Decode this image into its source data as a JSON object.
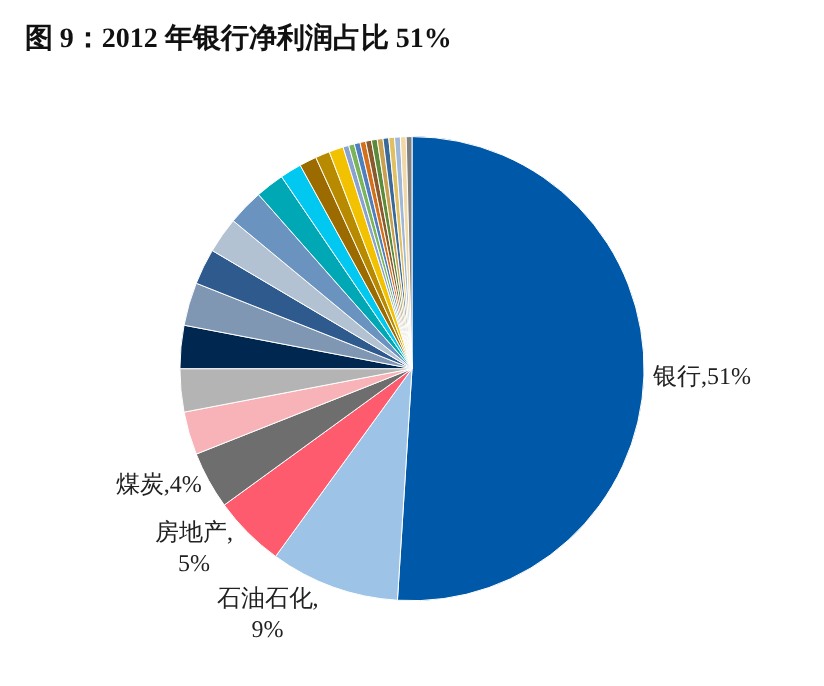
{
  "chart_data": {
    "type": "pie",
    "title": "图 9：2012 年银行净利润占比 51%",
    "categories": [
      "银行",
      "石油石化",
      "房地产",
      "煤炭",
      null,
      null,
      null,
      null,
      null,
      null,
      null,
      null,
      null,
      null,
      null,
      null,
      null,
      null,
      null,
      null,
      null,
      null,
      null,
      null,
      null,
      null,
      null,
      null
    ],
    "values": [
      51,
      9,
      5,
      4,
      3,
      3,
      3,
      3,
      2.5,
      2.5,
      2.5,
      2,
      1.5,
      1.2,
      1,
      1,
      0.4,
      0.4,
      0.4,
      0.4,
      0.4,
      0.4,
      0.4,
      0.4,
      0.4,
      0.4,
      0.4,
      0.4
    ],
    "colors": [
      "#0058a8",
      "#9dc3e6",
      "#ff5b6e",
      "#6e6e6e",
      "#f7b3b8",
      "#b4b4b4",
      "#00274f",
      "#7f97b3",
      "#2e5a8e",
      "#b3c2d3",
      "#6a93c0",
      "#00a8b5",
      "#00c8f0",
      "#9b6b00",
      "#b88a00",
      "#f2c200",
      "#8aa2d0",
      "#7ab55c",
      "#4f7fc0",
      "#d4701c",
      "#8a5a2c",
      "#5b8b3a",
      "#c8a050",
      "#3a6a9a",
      "#e0c060",
      "#a0b8d8",
      "#f0d8a8",
      "#808080"
    ],
    "value_labels": [
      ",51%",
      ",\n9%",
      ",\n5%",
      ",4%",
      null,
      null,
      null,
      null,
      null,
      null,
      null,
      null,
      null,
      null,
      null,
      null,
      null,
      null,
      null,
      null,
      null,
      null,
      null,
      null,
      null,
      null,
      null,
      null
    ]
  }
}
